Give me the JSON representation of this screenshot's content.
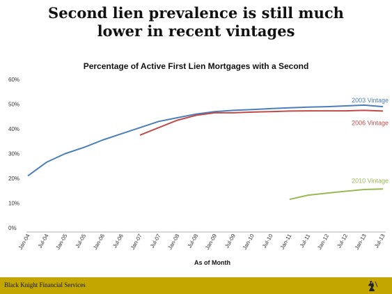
{
  "slide": {
    "title_line1": "Second lien prevalence is still much",
    "title_line2": "lower in recent vintages",
    "footer_text": "Black Knight Financial Services"
  },
  "colors": {
    "footer_bar": "#c3a700",
    "series_2003": "#4a7ebb",
    "series_2006": "#be4b48",
    "series_2010": "#98b954"
  },
  "chart_data": {
    "type": "line",
    "title": "Percentage of Active First Lien Mortgages with a Second",
    "xlabel": "As of Month",
    "ylabel": "",
    "ylim": [
      0,
      60
    ],
    "yticks": [
      "0%",
      "10%",
      "20%",
      "30%",
      "40%",
      "50%",
      "60%"
    ],
    "xticks": [
      "Jan-04",
      "Jul-04",
      "Jan-05",
      "Jul-05",
      "Jan-06",
      "Jul-06",
      "Jan-07",
      "Jul-07",
      "Jan-08",
      "Jul-08",
      "Jan-09",
      "Jul-09",
      "Jan-10",
      "Jul-10",
      "Jan-11",
      "Jul-11",
      "Jan-12",
      "Jul-12",
      "Jan-13",
      "Jul-13"
    ],
    "grid": false,
    "series": [
      {
        "name": "2003 Vintage",
        "color": "#4a7ebb",
        "points": [
          [
            "Jan-04",
            21
          ],
          [
            "Jul-04",
            26.5
          ],
          [
            "Jan-05",
            30
          ],
          [
            "Jul-05",
            32.5
          ],
          [
            "Jan-06",
            35.5
          ],
          [
            "Jul-06",
            38
          ],
          [
            "Jan-07",
            40.5
          ],
          [
            "Jul-07",
            43
          ],
          [
            "Jan-08",
            44.5
          ],
          [
            "Jul-08",
            46
          ],
          [
            "Jan-09",
            47
          ],
          [
            "Jul-09",
            47.5
          ],
          [
            "Jan-10",
            47.8
          ],
          [
            "Jul-10",
            48.2
          ],
          [
            "Jan-11",
            48.5
          ],
          [
            "Jul-11",
            48.8
          ],
          [
            "Jan-12",
            49
          ],
          [
            "Jul-12",
            49.3
          ],
          [
            "Jan-13",
            49.6
          ],
          [
            "Jul-13",
            49
          ]
        ]
      },
      {
        "name": "2006 Vintage",
        "color": "#be4b48",
        "points": [
          [
            "Jan-07",
            37.5
          ],
          [
            "Jul-07",
            40.5
          ],
          [
            "Jan-08",
            43.5
          ],
          [
            "Jul-08",
            45.5
          ],
          [
            "Jan-09",
            46.5
          ],
          [
            "Jul-09",
            46.5
          ],
          [
            "Jan-10",
            46.8
          ],
          [
            "Jul-10",
            47
          ],
          [
            "Jan-11",
            47.2
          ],
          [
            "Jul-11",
            47.3
          ],
          [
            "Jan-12",
            47.3
          ],
          [
            "Jul-12",
            47.3
          ],
          [
            "Jan-13",
            47.5
          ],
          [
            "Jul-13",
            47.2
          ]
        ]
      },
      {
        "name": "2010 Vintage",
        "color": "#98b954",
        "points": [
          [
            "Jan-11",
            11.5
          ],
          [
            "Jul-11",
            13.2
          ],
          [
            "Jan-12",
            14
          ],
          [
            "Jul-12",
            14.8
          ],
          [
            "Jan-13",
            15.5
          ],
          [
            "Jul-13",
            15.7
          ]
        ]
      }
    ]
  }
}
